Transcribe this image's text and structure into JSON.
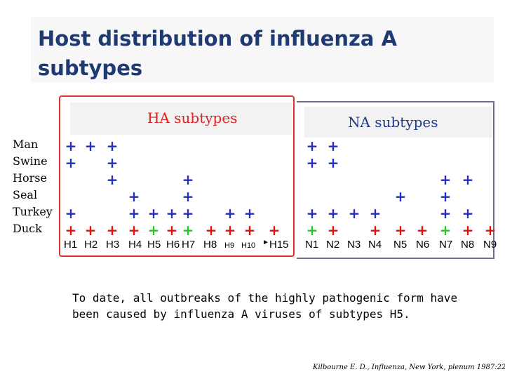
{
  "title": "Host distribution of influenza A subtypes",
  "ha_heading": "HA subtypes",
  "na_heading": "NA subtypes",
  "hosts": [
    "Man",
    "Swine",
    "Horse",
    "Seal",
    "Turkey",
    "Duck"
  ],
  "ha_subtypes": [
    "H1",
    "H2",
    "H3",
    "H4",
    "H5",
    "H6",
    "H7",
    "H8",
    "H9",
    "H10",
    "H15"
  ],
  "na_subtypes": [
    "N1",
    "N2",
    "N3",
    "N4",
    "N5",
    "N6",
    "N7",
    "N8",
    "N9"
  ],
  "colors": {
    "blue": "#1f2fbf",
    "red": "#e01010",
    "green": "#22cc22"
  },
  "ha_marks": {
    "Man": [
      [
        "H1",
        "blue"
      ],
      [
        "H2",
        "blue"
      ],
      [
        "H3",
        "blue"
      ]
    ],
    "Swine": [
      [
        "H1",
        "blue"
      ],
      [
        "H3",
        "blue"
      ]
    ],
    "Horse": [
      [
        "H3",
        "blue"
      ],
      [
        "H7",
        "blue"
      ]
    ],
    "Seal": [
      [
        "H4",
        "blue"
      ],
      [
        "H7",
        "blue"
      ]
    ],
    "Turkey": [
      [
        "H1",
        "blue"
      ],
      [
        "H4",
        "blue"
      ],
      [
        "H5",
        "blue"
      ],
      [
        "H6",
        "blue"
      ],
      [
        "H7",
        "blue"
      ],
      [
        "H9",
        "blue"
      ],
      [
        "H10",
        "blue"
      ]
    ],
    "Duck": [
      [
        "H1",
        "red"
      ],
      [
        "H2",
        "red"
      ],
      [
        "H3",
        "red"
      ],
      [
        "H4",
        "red"
      ],
      [
        "H5",
        "green"
      ],
      [
        "H6",
        "red"
      ],
      [
        "H7",
        "green"
      ],
      [
        "H8",
        "red"
      ],
      [
        "H9",
        "red"
      ],
      [
        "H10",
        "red"
      ],
      [
        "H15",
        "red"
      ]
    ]
  },
  "na_marks": {
    "Man": [
      [
        "N1",
        "blue"
      ],
      [
        "N2",
        "blue"
      ]
    ],
    "Swine": [
      [
        "N1",
        "blue"
      ],
      [
        "N2",
        "blue"
      ]
    ],
    "Horse": [
      [
        "N7",
        "blue"
      ],
      [
        "N8",
        "blue"
      ]
    ],
    "Seal": [
      [
        "N5",
        "blue"
      ],
      [
        "N7",
        "blue"
      ]
    ],
    "Turkey": [
      [
        "N1",
        "blue"
      ],
      [
        "N2",
        "blue"
      ],
      [
        "N3",
        "blue"
      ],
      [
        "N4",
        "blue"
      ],
      [
        "N7",
        "blue"
      ],
      [
        "N8",
        "blue"
      ]
    ],
    "Duck": [
      [
        "N1",
        "green"
      ],
      [
        "N2",
        "red"
      ],
      [
        "N4",
        "red"
      ],
      [
        "N5",
        "red"
      ],
      [
        "N6",
        "red"
      ],
      [
        "N7",
        "green"
      ],
      [
        "N8",
        "red"
      ],
      [
        "N9",
        "red"
      ]
    ]
  },
  "note": "To date, all outbreaks of the highly pathogenic form have been caused  by influenza A viruses of subtypes H5.",
  "citation": "Kilbourne E. D., Influenza, New York, plenum 1987:229-51"
}
